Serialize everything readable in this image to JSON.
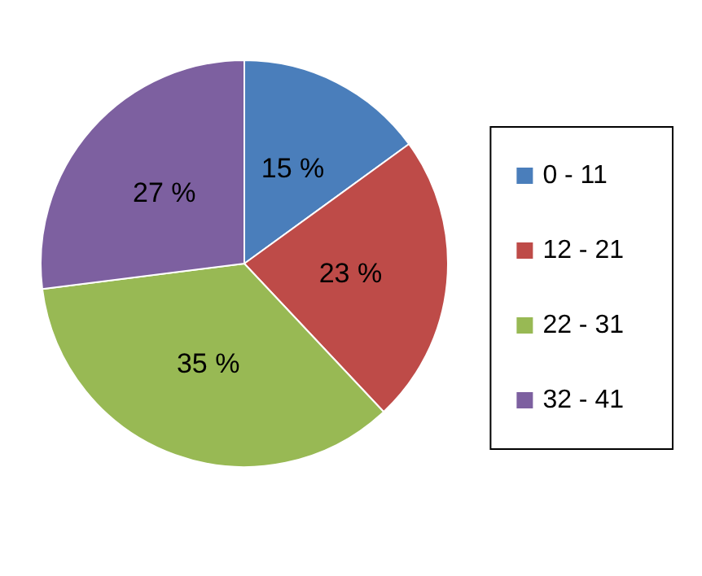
{
  "chart_data": {
    "type": "pie",
    "categories": [
      "0 - 11",
      "12 - 21",
      "22 - 31",
      "32 - 41"
    ],
    "values": [
      15,
      23,
      35,
      27
    ],
    "colors": [
      "#4a7ebb",
      "#be4b48",
      "#98b954",
      "#7d60a0"
    ],
    "value_labels": [
      "15 %",
      "23 %",
      "35 %",
      "27 %"
    ],
    "legend": "right"
  }
}
